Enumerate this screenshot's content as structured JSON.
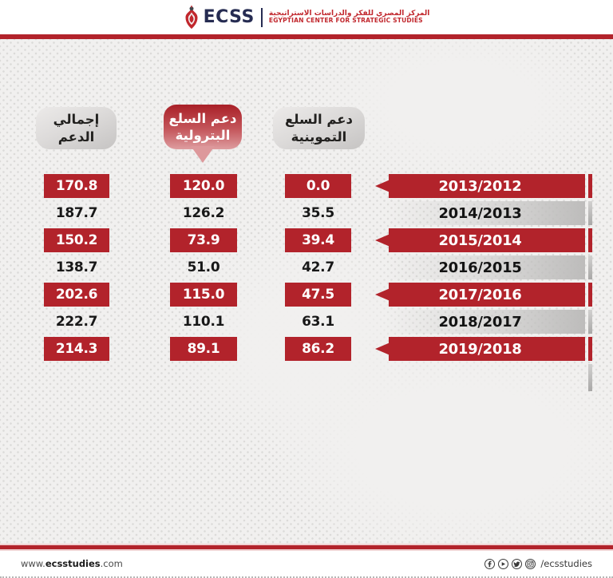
{
  "colors": {
    "accent_red": "#b2232b",
    "logo_navy": "#262c52",
    "logo_red": "#c1272d"
  },
  "header": {
    "logo_text": "ECSS",
    "org_name_ar": "المركز المصري للفكر والدراسات الاستراتيجية",
    "org_name_en": "EGYPTIAN CENTER FOR STRATEGIC STUDIES"
  },
  "columns": {
    "total": {
      "line1": "إجمالي",
      "line2": "الدعم"
    },
    "petroleum": {
      "line1": "دعم السلع",
      "line2": "البترولية"
    },
    "ration": {
      "line1": "دعم السلع",
      "line2": "التموينية"
    }
  },
  "rows": [
    {
      "year": "2013/2012",
      "total": "170.8",
      "petrol": "120.0",
      "tamwin": "0.0",
      "highlight": true
    },
    {
      "year": "2014/2013",
      "total": "187.7",
      "petrol": "126.2",
      "tamwin": "35.5",
      "highlight": false
    },
    {
      "year": "2015/2014",
      "total": "150.2",
      "petrol": "73.9",
      "tamwin": "39.4",
      "highlight": true
    },
    {
      "year": "2016/2015",
      "total": "138.7",
      "petrol": "51.0",
      "tamwin": "42.7",
      "highlight": false
    },
    {
      "year": "2017/2016",
      "total": "202.6",
      "petrol": "115.0",
      "tamwin": "47.5",
      "highlight": true
    },
    {
      "year": "2018/2017",
      "total": "222.7",
      "petrol": "110.1",
      "tamwin": "63.1",
      "highlight": false
    },
    {
      "year": "2019/2018",
      "total": "214.3",
      "petrol": "89.1",
      "tamwin": "86.2",
      "highlight": true
    }
  ],
  "chart_data": {
    "type": "table",
    "title": "",
    "categories": [
      "2013/2012",
      "2014/2013",
      "2015/2014",
      "2016/2015",
      "2017/2016",
      "2018/2017",
      "2019/2018"
    ],
    "series": [
      {
        "name": "دعم السلع التموينية",
        "values": [
          0.0,
          35.5,
          39.4,
          42.7,
          47.5,
          63.1,
          86.2
        ]
      },
      {
        "name": "دعم السلع البترولية",
        "values": [
          120.0,
          126.2,
          73.9,
          51.0,
          115.0,
          110.1,
          89.1
        ]
      },
      {
        "name": "إجمالي الدعم",
        "values": [
          170.8,
          187.7,
          150.2,
          138.7,
          202.6,
          222.7,
          214.3
        ]
      }
    ]
  },
  "footer": {
    "website_prefix": "www.",
    "website_bold": "ecsstudies",
    "website_suffix": ".com",
    "social_handle": "/ecsstudies",
    "social_icons": [
      "facebook-icon",
      "youtube-icon",
      "twitter-icon",
      "instagram-icon"
    ]
  }
}
